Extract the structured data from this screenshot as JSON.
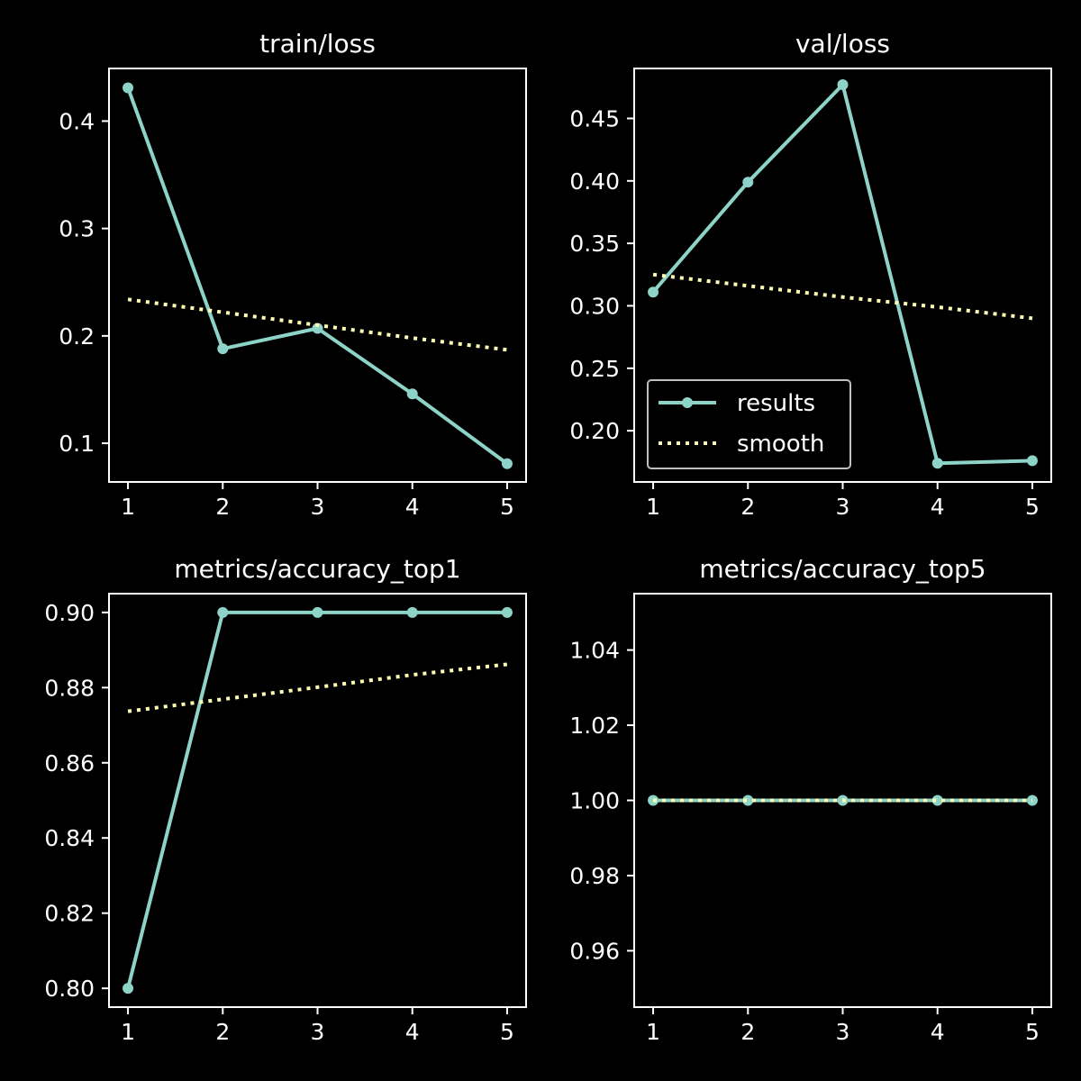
{
  "colors": {
    "background": "#000000",
    "axes": "#ffffff",
    "results": "#8dd3c7",
    "smooth": "#ffffb3"
  },
  "chart_data": [
    {
      "type": "line",
      "title": "train/loss",
      "x": [
        1,
        2,
        3,
        4,
        5
      ],
      "xticks": [
        "1",
        "2",
        "3",
        "4",
        "5"
      ],
      "xlim": [
        0.8,
        5.2
      ],
      "ylim": [
        0.064,
        0.449
      ],
      "yticks": [
        0.1,
        0.2,
        0.3,
        0.4
      ],
      "ytick_labels": [
        "0.1",
        "0.2",
        "0.3",
        "0.4"
      ],
      "series": [
        {
          "key": "results",
          "style": "solid-markers",
          "values": [
            0.431,
            0.188,
            0.207,
            0.146,
            0.081
          ]
        },
        {
          "key": "smooth",
          "style": "dotted",
          "values": [
            0.234,
            0.222,
            0.21,
            0.198,
            0.187
          ]
        }
      ]
    },
    {
      "type": "line",
      "title": "val/loss",
      "x": [
        1,
        2,
        3,
        4,
        5
      ],
      "xticks": [
        "1",
        "2",
        "3",
        "4",
        "5"
      ],
      "xlim": [
        0.8,
        5.2
      ],
      "ylim": [
        0.159,
        0.49
      ],
      "yticks": [
        0.2,
        0.25,
        0.3,
        0.35,
        0.4,
        0.45
      ],
      "ytick_labels": [
        "0.20",
        "0.25",
        "0.30",
        "0.35",
        "0.40",
        "0.45"
      ],
      "legend": {
        "position": "lower-left",
        "entries": [
          "results",
          "smooth"
        ]
      },
      "series": [
        {
          "key": "results",
          "name": "results",
          "style": "solid-markers",
          "values": [
            0.311,
            0.399,
            0.477,
            0.174,
            0.176
          ]
        },
        {
          "key": "smooth",
          "name": "smooth",
          "style": "dotted",
          "values": [
            0.325,
            0.316,
            0.307,
            0.299,
            0.29
          ]
        }
      ]
    },
    {
      "type": "line",
      "title": "metrics/accuracy_top1",
      "x": [
        1,
        2,
        3,
        4,
        5
      ],
      "xticks": [
        "1",
        "2",
        "3",
        "4",
        "5"
      ],
      "xlim": [
        0.8,
        5.2
      ],
      "ylim": [
        0.795,
        0.905
      ],
      "yticks": [
        0.8,
        0.82,
        0.84,
        0.86,
        0.88,
        0.9
      ],
      "ytick_labels": [
        "0.80",
        "0.82",
        "0.84",
        "0.86",
        "0.88",
        "0.90"
      ],
      "series": [
        {
          "key": "results",
          "style": "solid-markers",
          "values": [
            0.8,
            0.9,
            0.9,
            0.9,
            0.9
          ]
        },
        {
          "key": "smooth",
          "style": "dotted",
          "values": [
            0.8737,
            0.8769,
            0.8801,
            0.8834,
            0.8862
          ]
        }
      ]
    },
    {
      "type": "line",
      "title": "metrics/accuracy_top5",
      "x": [
        1,
        2,
        3,
        4,
        5
      ],
      "xticks": [
        "1",
        "2",
        "3",
        "4",
        "5"
      ],
      "xlim": [
        0.8,
        5.2
      ],
      "ylim": [
        0.945,
        1.055
      ],
      "yticks": [
        0.96,
        0.98,
        1.0,
        1.02,
        1.04
      ],
      "ytick_labels": [
        "0.96",
        "0.98",
        "1.00",
        "1.02",
        "1.04"
      ],
      "series": [
        {
          "key": "results",
          "style": "solid-markers",
          "values": [
            1.0,
            1.0,
            1.0,
            1.0,
            1.0
          ]
        },
        {
          "key": "smooth",
          "style": "dotted",
          "values": [
            1.0,
            1.0,
            1.0,
            1.0,
            1.0
          ]
        }
      ]
    }
  ]
}
